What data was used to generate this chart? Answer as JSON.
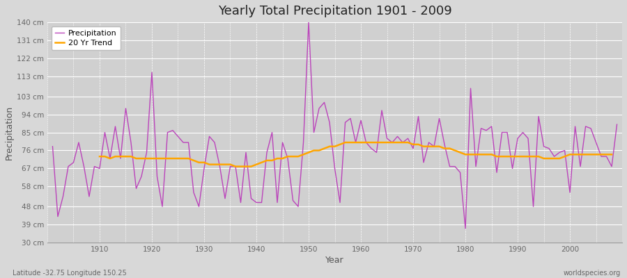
{
  "title": "Yearly Total Precipitation 1901 - 2009",
  "xlabel": "Year",
  "ylabel": "Precipitation",
  "bottom_left_label": "Latitude -32.75 Longitude 150.25",
  "bottom_right_label": "worldspecies.org",
  "legend_labels": [
    "Precipitation",
    "20 Yr Trend"
  ],
  "precip_color": "#BB44BB",
  "trend_color": "#FFA500",
  "background_color": "#D8D8D8",
  "plot_bg_color": "#D0D0D0",
  "grid_color": "#FFFFFF",
  "ylim": [
    30,
    140
  ],
  "yticks": [
    30,
    39,
    48,
    58,
    67,
    76,
    85,
    94,
    103,
    113,
    122,
    131,
    140
  ],
  "xlim_start": 1900,
  "xlim_end": 2010,
  "xticks": [
    1910,
    1920,
    1930,
    1940,
    1950,
    1960,
    1970,
    1980,
    1990,
    2000
  ],
  "years": [
    1901,
    1902,
    1903,
    1904,
    1905,
    1906,
    1907,
    1908,
    1909,
    1910,
    1911,
    1912,
    1913,
    1914,
    1915,
    1916,
    1917,
    1918,
    1919,
    1920,
    1921,
    1922,
    1923,
    1924,
    1925,
    1926,
    1927,
    1928,
    1929,
    1930,
    1931,
    1932,
    1933,
    1934,
    1935,
    1936,
    1937,
    1938,
    1939,
    1940,
    1941,
    1942,
    1943,
    1944,
    1945,
    1946,
    1947,
    1948,
    1949,
    1950,
    1951,
    1952,
    1953,
    1954,
    1955,
    1956,
    1957,
    1958,
    1959,
    1960,
    1961,
    1962,
    1963,
    1964,
    1965,
    1966,
    1967,
    1968,
    1969,
    1970,
    1971,
    1972,
    1973,
    1974,
    1975,
    1976,
    1977,
    1978,
    1979,
    1980,
    1981,
    1982,
    1983,
    1984,
    1985,
    1986,
    1987,
    1988,
    1989,
    1990,
    1991,
    1992,
    1993,
    1994,
    1995,
    1996,
    1997,
    1998,
    1999,
    2000,
    2001,
    2002,
    2003,
    2004,
    2005,
    2006,
    2007,
    2008,
    2009
  ],
  "precipitation": [
    78,
    43,
    53,
    68,
    70,
    80,
    68,
    53,
    68,
    67,
    85,
    72,
    88,
    72,
    97,
    80,
    57,
    63,
    75,
    115,
    63,
    48,
    85,
    86,
    83,
    80,
    80,
    55,
    48,
    67,
    83,
    80,
    68,
    52,
    68,
    68,
    50,
    75,
    52,
    50,
    50,
    75,
    85,
    50,
    80,
    72,
    51,
    48,
    80,
    140,
    85,
    97,
    100,
    90,
    67,
    50,
    90,
    92,
    80,
    91,
    80,
    77,
    75,
    96,
    82,
    80,
    83,
    80,
    82,
    77,
    93,
    70,
    80,
    78,
    92,
    79,
    68,
    68,
    65,
    37,
    107,
    68,
    87,
    86,
    88,
    65,
    85,
    85,
    67,
    82,
    85,
    82,
    48,
    93,
    78,
    77,
    73,
    75,
    76,
    55,
    88,
    68,
    88,
    87,
    80,
    73,
    73,
    68,
    89
  ],
  "trend": [
    null,
    null,
    null,
    null,
    null,
    null,
    null,
    null,
    null,
    73,
    73,
    72,
    73,
    73,
    73,
    73,
    72,
    72,
    72,
    72,
    72,
    72,
    72,
    72,
    72,
    72,
    72,
    71,
    70,
    70,
    69,
    69,
    69,
    69,
    69,
    68,
    68,
    68,
    68,
    69,
    70,
    71,
    71,
    72,
    72,
    73,
    73,
    73,
    74,
    75,
    76,
    76,
    77,
    78,
    78,
    79,
    80,
    80,
    80,
    80,
    80,
    80,
    80,
    80,
    80,
    80,
    80,
    80,
    80,
    79,
    79,
    78,
    78,
    78,
    78,
    77,
    77,
    76,
    75,
    74,
    74,
    74,
    74,
    74,
    74,
    73,
    73,
    73,
    73,
    73,
    73,
    73,
    73,
    73,
    72,
    72,
    72,
    72,
    73,
    74,
    74,
    74,
    74,
    74,
    74,
    74,
    74,
    74,
    null
  ]
}
